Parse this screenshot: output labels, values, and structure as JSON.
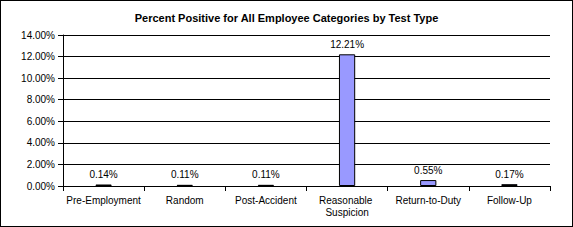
{
  "chart_data": {
    "type": "bar",
    "title": "Percent Positive for All Employee Categories by Test Type",
    "categories": [
      "Pre-Employment",
      "Random",
      "Post-Accident",
      "Reasonable Suspicion",
      "Return-to-Duty",
      "Follow-Up"
    ],
    "values": [
      0.14,
      0.11,
      0.11,
      12.21,
      0.55,
      0.17
    ],
    "value_labels": [
      "0.14%",
      "0.11%",
      "0.11%",
      "12.21%",
      "0.55%",
      "0.17%"
    ],
    "color": "#9999ff",
    "ylim": [
      0,
      14
    ],
    "yticks": [
      {
        "value": 0,
        "label": "0.00%"
      },
      {
        "value": 2,
        "label": "2.00%"
      },
      {
        "value": 4,
        "label": "4.00%"
      },
      {
        "value": 6,
        "label": "6.00%"
      },
      {
        "value": 8,
        "label": "8.00%"
      },
      {
        "value": 10,
        "label": "10.00%"
      },
      {
        "value": 12,
        "label": "12.00%"
      },
      {
        "value": 14,
        "label": "14.00%"
      }
    ],
    "grid": true,
    "data_labels": true
  }
}
